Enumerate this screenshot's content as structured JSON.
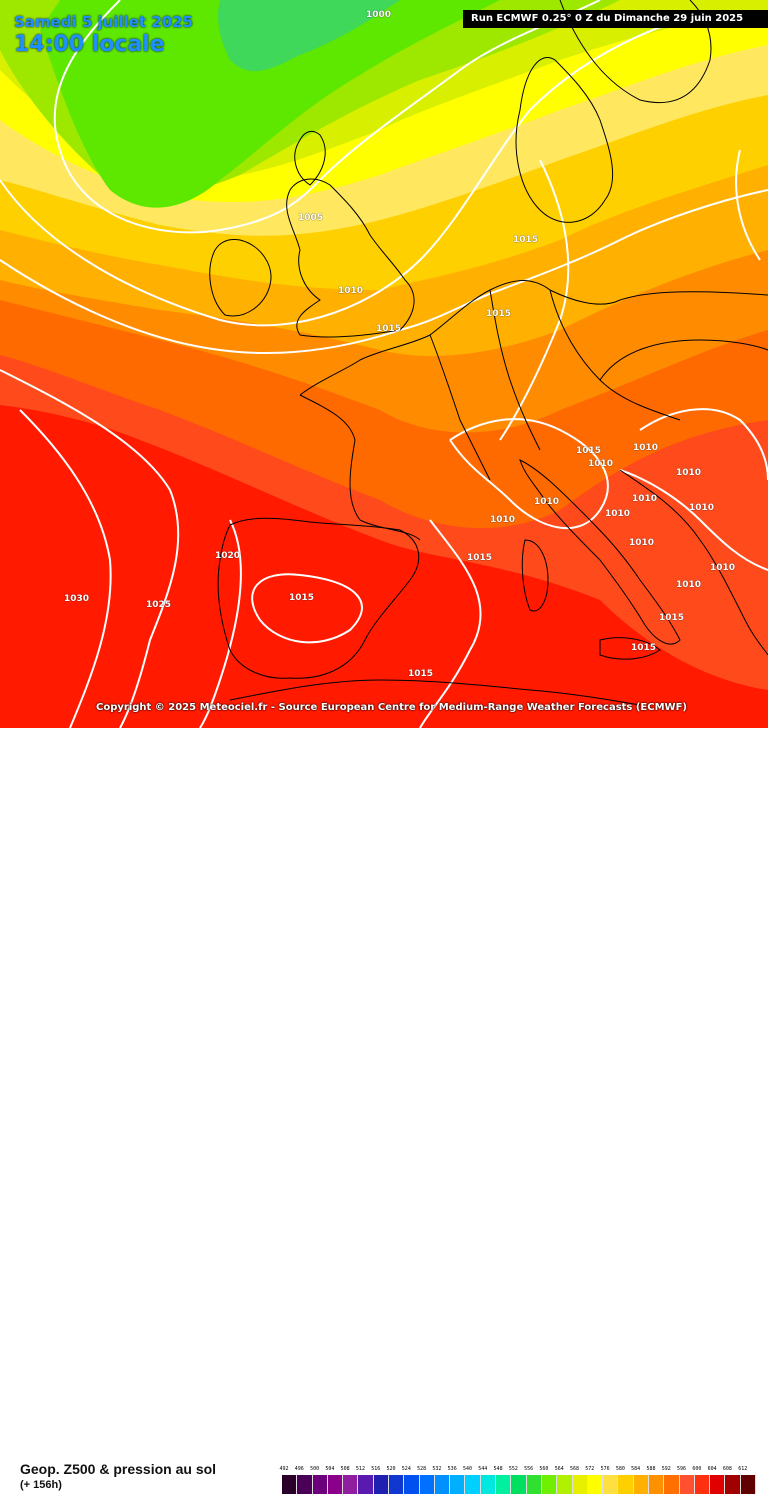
{
  "header": {
    "date": "Samedi 5 juillet 2025",
    "time": "14:00 locale",
    "run": "Run ECMWF 0.25° 0 Z du Dimanche 29 juin 2025"
  },
  "copyright": "Copyright © 2025 Meteociel.fr - Source European Centre for Medium-Range Weather Forecasts (ECMWF)",
  "parameter": {
    "title": "Geop. Z500 & pression au sol",
    "subtitle": "(+ 156h)"
  },
  "legend": {
    "values": [
      "492",
      "496",
      "500",
      "504",
      "508",
      "512",
      "516",
      "520",
      "524",
      "528",
      "532",
      "536",
      "540",
      "544",
      "548",
      "552",
      "556",
      "560",
      "564",
      "568",
      "572",
      "576",
      "580",
      "584",
      "588",
      "592",
      "596",
      "600",
      "604",
      "608",
      "612"
    ],
    "colors": [
      "#2a002a",
      "#4b0057",
      "#6b007a",
      "#8b008b",
      "#8f1fa0",
      "#5a1ab0",
      "#2020b0",
      "#1038d0",
      "#0050f0",
      "#0070ff",
      "#0090ff",
      "#00b0ff",
      "#00d0ff",
      "#00e8e0",
      "#00f0a0",
      "#00e060",
      "#30e030",
      "#70f000",
      "#b0f000",
      "#e8f000",
      "#ffff00",
      "#ffe040",
      "#ffd000",
      "#ffb000",
      "#ff9000",
      "#ff7000",
      "#ff5030",
      "#ff3010",
      "#e00000",
      "#a00000",
      "#600000"
    ]
  },
  "isobars": [
    {
      "text": "1000"
    },
    {
      "text": "1005"
    },
    {
      "text": "1010"
    },
    {
      "text": "1015"
    },
    {
      "text": "1015"
    },
    {
      "text": "1015"
    },
    {
      "text": "1015"
    },
    {
      "text": "1010"
    },
    {
      "text": "1010"
    },
    {
      "text": "1010"
    },
    {
      "text": "1010"
    },
    {
      "text": "1010"
    },
    {
      "text": "1010"
    },
    {
      "text": "1010"
    },
    {
      "text": "1010"
    },
    {
      "text": "1010"
    },
    {
      "text": "1010"
    },
    {
      "text": "1010"
    },
    {
      "text": "1015"
    },
    {
      "text": "1015"
    },
    {
      "text": "1015"
    },
    {
      "text": "1015"
    },
    {
      "text": "1020"
    },
    {
      "text": "1025"
    },
    {
      "text": "1030"
    },
    {
      "text": "1015"
    }
  ]
}
